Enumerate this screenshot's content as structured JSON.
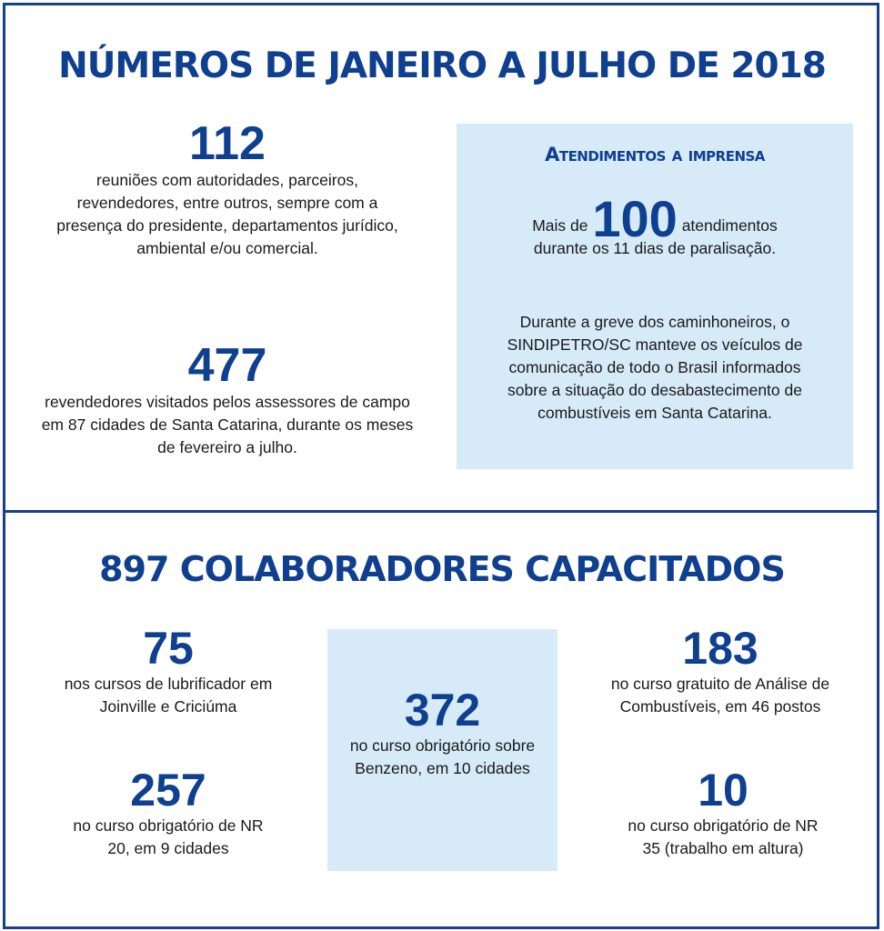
{
  "section1": {
    "title": "NÚMEROS DE JANEIRO A JULHO DE 2018",
    "stats": [
      {
        "number": "112",
        "text": "reuniões com autoridades, parceiros, revendedores, entre outros, sempre com a presença do presidente, departamentos jurídico, ambiental e/ou comercial."
      },
      {
        "number": "477",
        "text": "revendedores visitados pelos assessores de campo em 87 cidades de Santa Catarina, durante os meses de fevereiro a julho."
      }
    ],
    "press": {
      "heading": "Atendimentos a imprensa",
      "prefix": "Mais de",
      "number": "100",
      "suffix": "atendimentos",
      "line2": "durante os 11 dias de paralisação.",
      "paragraph": "Durante a greve dos caminhoneiros, o SINDIPETRO/SC manteve os veículos de comunicação de todo o Brasil informados sobre a situação do desabastecimento de combustíveis em Santa Catarina."
    }
  },
  "section2": {
    "title": "897 COLABORADORES CAPACITADOS",
    "stats": [
      {
        "number": "75",
        "text": "nos cursos de lubrificador em Joinville e Criciúma"
      },
      {
        "number": "257",
        "text": "no curso obrigatório de NR 20, em 9 cidades"
      },
      {
        "number": "372",
        "text": "no curso obrigatório sobre Benzeno, em 10 cidades"
      },
      {
        "number": "183",
        "text": "no curso gratuito de Análise de Combustíveis, em 46 postos"
      },
      {
        "number": "10",
        "text": "no curso obrigatório de NR 35 (trabalho em altura)"
      }
    ]
  },
  "colors": {
    "primary": "#0f3f8f",
    "box": "#d6eaf8"
  }
}
